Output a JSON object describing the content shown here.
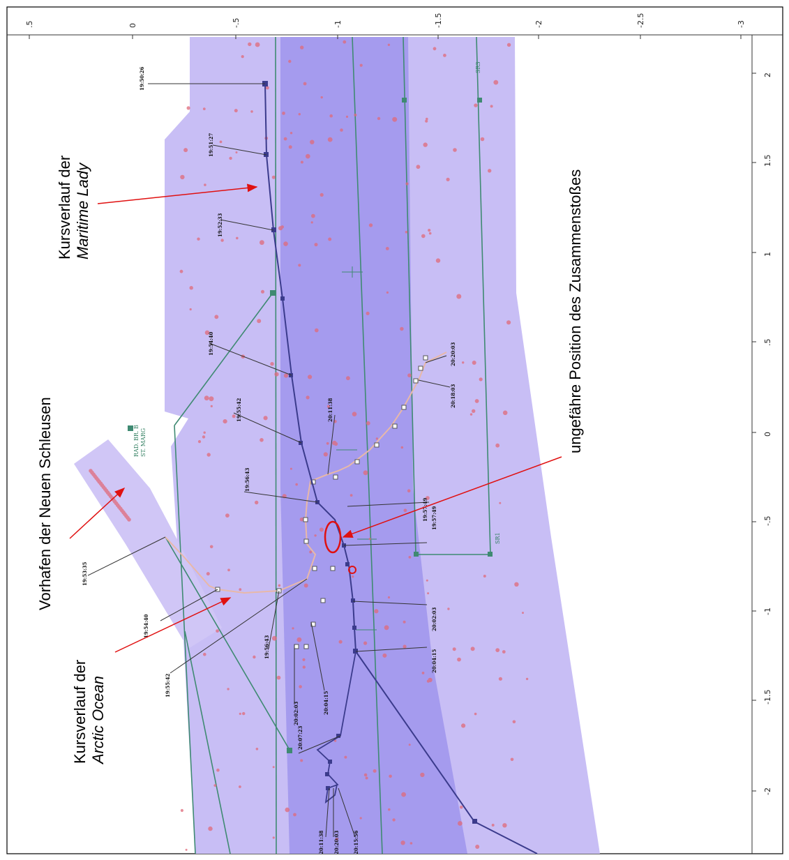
{
  "colors": {
    "outer_channel": "#c8bef5",
    "inner_channel": "#a59bee",
    "green_line": "#3f8a72",
    "maritime_track": "#3b3b8c",
    "arctic_track": "#e8b8a8",
    "annotation_arrow": "#e01010",
    "red_dots": "#e06a7a"
  },
  "axes": {
    "top_ticks": [
      ".5",
      "0",
      "-.5",
      "-1",
      "-1.5",
      "-2",
      "-2.5",
      "-3"
    ],
    "right_ticks": [
      "2",
      "1.5",
      "1",
      ".5",
      "0",
      "-.5",
      "-1",
      "-1.5",
      "-2"
    ]
  },
  "annotations": {
    "maritime_lady": {
      "line1": "Kursverlauf der",
      "line2": "Maritime Lady"
    },
    "collision": {
      "text": "ungefähre Position des Zusammenstoßes"
    },
    "vorhafen": {
      "text": "Vorhafen der Neuen Schleusen"
    },
    "arctic_ocean": {
      "line1": "Kursverlauf der",
      "line2": "Arctic Ocean"
    }
  },
  "map_labels": {
    "rad_br": "RAD. BR. B",
    "st_marg": "ST. MARG",
    "sr3": "SR3",
    "sr1": "SR1"
  },
  "timestamps": {
    "maritime": [
      "19:50:26",
      "19:51:27",
      "19:52:33",
      "19:54:40",
      "19:55:42",
      "19:56:43",
      "19:57:49",
      "20:02:03",
      "20:04:15",
      "20:07:23",
      "20:15:56"
    ],
    "arctic": [
      "19:53:35",
      "19:54:40",
      "19:55:42",
      "19:56:43",
      "19:57:49",
      "20:02:03",
      "20:04:15",
      "20:11:38",
      "20:18:03",
      "20:20:03"
    ],
    "bottom": [
      "20:11:38",
      "20:20:03"
    ]
  }
}
